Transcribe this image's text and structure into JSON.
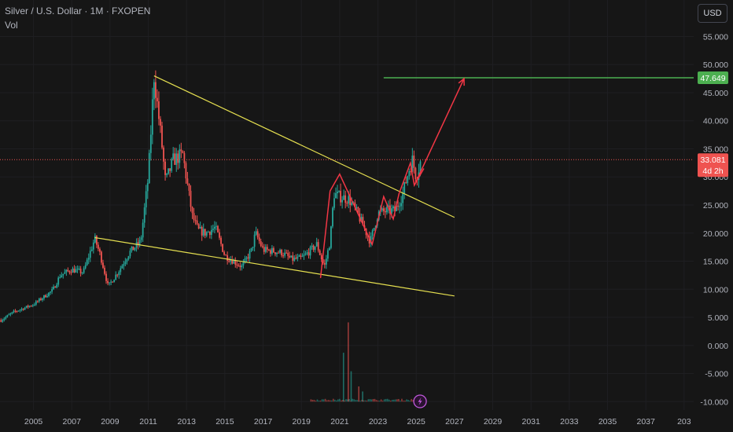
{
  "header": {
    "title": "Silver / U.S. Dollar · 1M · FXOPEN",
    "volume_label": "Vol",
    "currency": "USD"
  },
  "price_badge": {
    "price": "33.081",
    "countdown": "4d 2h"
  },
  "target_badge": {
    "price": "47.649"
  },
  "colors": {
    "background": "#161616",
    "up": "#26a69a",
    "down": "#ef5350",
    "trendline": "#e6e050",
    "target": "#4caf50",
    "arrow": "#f23645",
    "event_icon": "#c158dc"
  },
  "icons": {
    "event": "lightning-icon"
  },
  "chart_data": {
    "type": "candlestick",
    "timeframe": "1M",
    "y_ticks": [
      "55.000",
      "50.000",
      "45.000",
      "40.000",
      "35.000",
      "30.000",
      "25.000",
      "20.000",
      "15.000",
      "10.000",
      "5.000",
      "0.000",
      "-5.000",
      "-10.000"
    ],
    "x_ticks": [
      "2005",
      "2007",
      "2009",
      "2011",
      "2013",
      "2015",
      "2017",
      "2019",
      "2021",
      "2023",
      "2025",
      "2027",
      "2029",
      "2031",
      "2033",
      "2035",
      "2037",
      "203"
    ],
    "ylim": [
      -11.5,
      61.5
    ],
    "xlim": [
      2003.25,
      2039.5
    ],
    "anchors": [
      [
        2003.3,
        4.5
      ],
      [
        2004.0,
        6.0
      ],
      [
        2005.0,
        7.3
      ],
      [
        2006.0,
        9.8
      ],
      [
        2006.4,
        12.5
      ],
      [
        2007.0,
        13.5
      ],
      [
        2007.6,
        13.0
      ],
      [
        2008.2,
        19.0
      ],
      [
        2008.5,
        16.0
      ],
      [
        2008.9,
        10.5
      ],
      [
        2009.5,
        13.5
      ],
      [
        2010.0,
        16.5
      ],
      [
        2010.6,
        18.5
      ],
      [
        2011.0,
        30.0
      ],
      [
        2011.3,
        48.0
      ],
      [
        2011.7,
        36.0
      ],
      [
        2011.9,
        29.0
      ],
      [
        2012.3,
        33.0
      ],
      [
        2012.8,
        34.0
      ],
      [
        2013.3,
        23.0
      ],
      [
        2013.6,
        20.5
      ],
      [
        2014.0,
        20.0
      ],
      [
        2014.5,
        21.0
      ],
      [
        2015.0,
        16.0
      ],
      [
        2015.9,
        14.0
      ],
      [
        2016.4,
        17.0
      ],
      [
        2016.6,
        20.0
      ],
      [
        2017.0,
        17.0
      ],
      [
        2017.5,
        16.8
      ],
      [
        2018.0,
        16.5
      ],
      [
        2018.5,
        15.3
      ],
      [
        2019.0,
        15.5
      ],
      [
        2019.5,
        17.0
      ],
      [
        2019.8,
        18.0
      ],
      [
        2020.2,
        14.0
      ],
      [
        2020.5,
        18.5
      ],
      [
        2020.7,
        27.0
      ],
      [
        2021.0,
        26.5
      ],
      [
        2021.5,
        26.0
      ],
      [
        2022.0,
        23.0
      ],
      [
        2022.6,
        18.5
      ],
      [
        2023.0,
        23.5
      ],
      [
        2023.5,
        24.0
      ],
      [
        2023.9,
        24.0
      ],
      [
        2024.3,
        27.0
      ],
      [
        2024.6,
        31.0
      ],
      [
        2024.8,
        33.0
      ],
      [
        2025.0,
        30.0
      ],
      [
        2025.25,
        33.0
      ]
    ],
    "volume_spikes": [
      {
        "x": 2021.2,
        "v": 2.9
      },
      {
        "x": 2021.45,
        "v": 4.7
      },
      {
        "x": 2021.6,
        "v": 1.8
      },
      {
        "x": 2022.0,
        "v": 0.9
      },
      {
        "x": 2022.2,
        "v": 0.6
      }
    ],
    "upper_trendline": [
      [
        2011.3,
        48.0
      ],
      [
        2027.0,
        22.8
      ]
    ],
    "lower_trendline": [
      [
        2008.2,
        19.2
      ],
      [
        2027.0,
        8.8
      ]
    ],
    "target_level": {
      "price": 47.649,
      "x_start": 2023.3
    },
    "wave_path": [
      [
        2020.0,
        12.0
      ],
      [
        2020.5,
        27.5
      ],
      [
        2021.0,
        30.5
      ],
      [
        2022.7,
        18.0
      ],
      [
        2023.3,
        26.5
      ],
      [
        2023.8,
        22.5
      ],
      [
        2024.1,
        27.0
      ],
      [
        2024.7,
        32.5
      ],
      [
        2024.9,
        28.5
      ],
      [
        2025.4,
        31.5
      ]
    ],
    "forecast_arrow": [
      [
        2024.9,
        28.5
      ],
      [
        2027.5,
        47.5
      ]
    ],
    "current_price": 33.081,
    "event_marker": {
      "x": 2025.2
    }
  }
}
